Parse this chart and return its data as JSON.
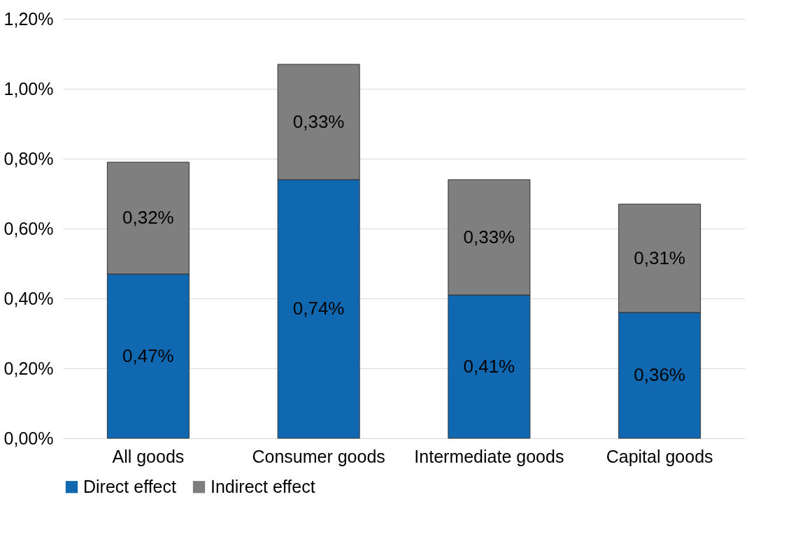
{
  "chart_data": {
    "type": "bar",
    "stacked": true,
    "categories": [
      "All goods",
      "Consumer goods",
      "Intermediate goods",
      "Capital goods"
    ],
    "series": [
      {
        "name": "Direct effect",
        "color": "#1068b0",
        "values": [
          0.47,
          0.74,
          0.41,
          0.36
        ],
        "value_labels": [
          "0,47%",
          "0,74%",
          "0,41%",
          "0,36%"
        ]
      },
      {
        "name": "Indirect effect",
        "color": "#7f7f7f",
        "values": [
          0.32,
          0.33,
          0.33,
          0.31
        ],
        "value_labels": [
          "0,32%",
          "0,33%",
          "0,33%",
          "0,31%"
        ]
      }
    ],
    "ylim": [
      0,
      1.2
    ],
    "yticks": [
      {
        "value": 0,
        "label": "0,00%"
      },
      {
        "value": 0.2,
        "label": "0,20%"
      },
      {
        "value": 0.4,
        "label": "0,40%"
      },
      {
        "value": 0.6,
        "label": "0,60%"
      },
      {
        "value": 0.8,
        "label": "0,80%"
      },
      {
        "value": 1.0,
        "label": "1,00%"
      },
      {
        "value": 1.2,
        "label": "1,20%"
      }
    ],
    "grid": "y",
    "legend": "bottom"
  }
}
